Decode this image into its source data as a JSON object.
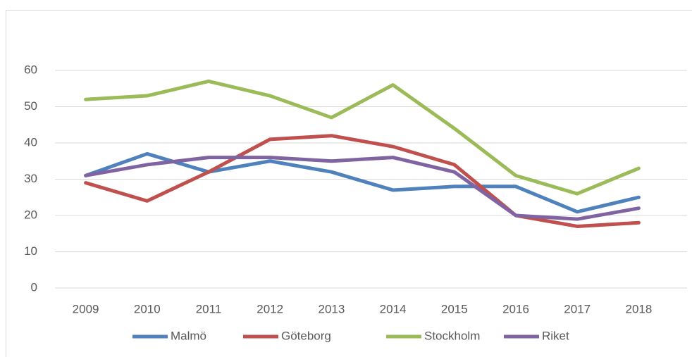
{
  "chart_data": {
    "type": "line",
    "categories": [
      "2009",
      "2010",
      "2011",
      "2012",
      "2013",
      "2014",
      "2015",
      "2016",
      "2017",
      "2018"
    ],
    "series": [
      {
        "name": "Malmö",
        "color": "#4f81bd",
        "values": [
          31,
          37,
          32,
          35,
          32,
          27,
          28,
          28,
          21,
          25
        ]
      },
      {
        "name": "Göteborg",
        "color": "#c0504d",
        "values": [
          29,
          24,
          32,
          41,
          42,
          39,
          34,
          20,
          17,
          18
        ]
      },
      {
        "name": "Stockholm",
        "color": "#9bbb59",
        "values": [
          52,
          53,
          57,
          53,
          47,
          56,
          44,
          31,
          26,
          33
        ]
      },
      {
        "name": "Riket",
        "color": "#8064a2",
        "values": [
          31,
          34,
          36,
          36,
          35,
          36,
          32,
          20,
          19,
          22
        ]
      }
    ],
    "ylim": [
      0,
      60
    ],
    "yticks": [
      0,
      10,
      20,
      30,
      40,
      50,
      60
    ],
    "grid": true,
    "legend": "bottom"
  }
}
